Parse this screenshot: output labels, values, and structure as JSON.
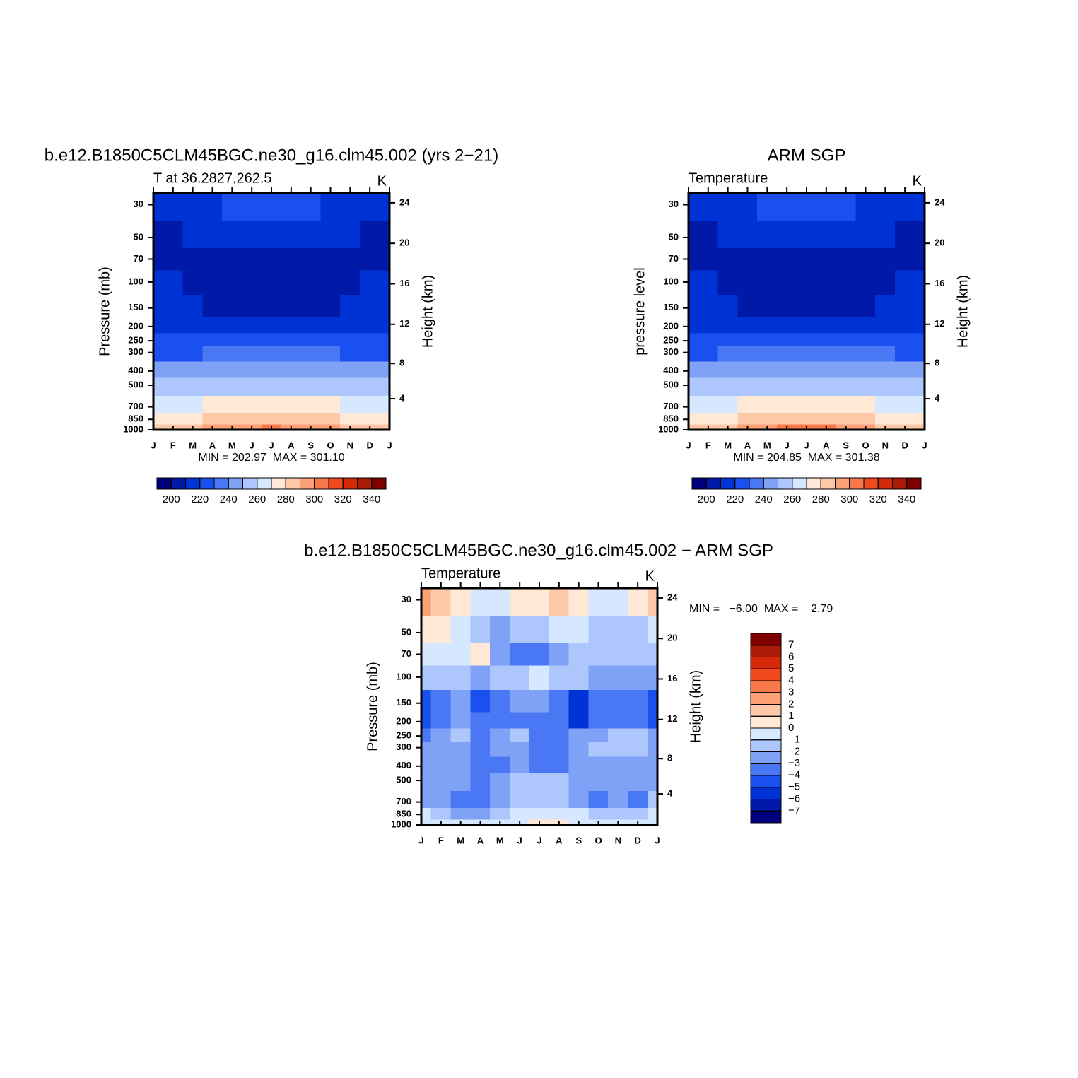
{
  "chart_data": [
    {
      "type": "contour",
      "title": "b.e12.B1850C5CLM45BGC.ne30_g16.clm45.002 (yrs 2−21)",
      "subtitle": "T at 36.2827,262.5",
      "units": "K",
      "ylabel": "Pressure (mb)",
      "y2label": "Height (km)",
      "stats": "MIN = 202.97  MAX = 301.10",
      "categories": [
        "J",
        "F",
        "M",
        "A",
        "M",
        "J",
        "J",
        "A",
        "S",
        "O",
        "N",
        "D",
        "J"
      ],
      "log_y": true,
      "ylim": [
        1000,
        25
      ],
      "yticks": [
        30,
        50,
        70,
        100,
        150,
        200,
        250,
        300,
        400,
        500,
        700,
        850,
        1000
      ],
      "y2ticks": [
        4,
        8,
        12,
        16,
        20,
        24
      ],
      "y": [
        30,
        50,
        70,
        100,
        150,
        200,
        250,
        300,
        400,
        500,
        700,
        850,
        1000
      ],
      "z": [
        [
          214,
          214.5,
          216,
          218,
          220,
          221.5,
          222,
          221.5,
          220,
          218,
          216,
          214.5,
          214
        ],
        [
          209,
          209.4,
          210.5,
          212,
          213.5,
          214.6,
          215,
          214.6,
          213.5,
          212,
          210.5,
          209.4,
          209
        ],
        [
          206,
          206.2,
          206.8,
          207.5,
          208.3,
          208.8,
          209,
          208.8,
          208.3,
          207.5,
          206.8,
          206.2,
          206
        ],
        [
          211,
          210.6,
          209.5,
          208,
          206.5,
          205.4,
          205,
          205.4,
          206.5,
          208,
          209.5,
          210.6,
          211
        ],
        [
          212.97,
          212.3,
          210.5,
          208,
          205.5,
          203.6,
          202.97,
          203.6,
          205.5,
          208,
          210.5,
          212.3,
          212.97
        ],
        [
          217,
          216.8,
          216.3,
          215.5,
          214.8,
          214.2,
          214,
          214.2,
          214.8,
          215.5,
          216.3,
          216.8,
          217
        ],
        [
          222,
          222.2,
          222.8,
          223.5,
          224.3,
          224.8,
          225,
          224.8,
          224.3,
          223.5,
          222.8,
          222.2,
          222
        ],
        [
          228,
          228.4,
          229.5,
          231,
          232.5,
          233.6,
          234,
          233.6,
          232.5,
          231,
          229.5,
          228.4,
          228
        ],
        [
          241,
          241.5,
          243,
          245,
          247,
          248.5,
          249,
          248.5,
          247,
          245,
          243,
          241.5,
          241
        ],
        [
          251,
          251.6,
          253.1,
          255.3,
          257.4,
          258.9,
          259.5,
          258.9,
          257.4,
          255.3,
          253.1,
          251.6,
          251
        ],
        [
          265,
          265.8,
          268,
          271,
          274,
          276.2,
          277,
          276.2,
          274,
          271,
          268,
          265.8,
          265
        ],
        [
          275,
          275.9,
          278.5,
          282,
          285.5,
          288.1,
          289,
          288.1,
          285.5,
          282,
          278.5,
          275.9,
          275
        ],
        [
          280,
          281.4,
          285.3,
          290.6,
          295.8,
          299.7,
          301.1,
          299.7,
          295.8,
          290.6,
          285.3,
          281.4,
          280
        ]
      ],
      "levels": [
        200,
        210,
        220,
        230,
        240,
        250,
        260,
        270,
        280,
        290,
        300,
        310,
        320,
        330,
        340
      ],
      "colors": [
        "#00007f",
        "#0019a8",
        "#0033d6",
        "#1a4ff0",
        "#4a78f5",
        "#80a2f6",
        "#adc6fc",
        "#d6e8ff",
        "#ffe8d6",
        "#fcc8a8",
        "#fca078",
        "#f8784a",
        "#f04a1e",
        "#d42a0a",
        "#aa1a05",
        "#800000"
      ],
      "colorbar": "horizontal",
      "colorbar_ticks": [
        200,
        220,
        240,
        260,
        280,
        300,
        320,
        340
      ]
    },
    {
      "type": "contour",
      "title": "ARM SGP",
      "subtitle": "Temperature",
      "units": "K",
      "ylabel": "pressure level",
      "y2label": "Height (km)",
      "stats": "MIN = 204.85  MAX = 301.38",
      "categories": [
        "J",
        "F",
        "M",
        "A",
        "M",
        "J",
        "J",
        "A",
        "S",
        "O",
        "N",
        "D",
        "J"
      ],
      "log_y": true,
      "ylim": [
        1000,
        25
      ],
      "yticks": [
        30,
        50,
        70,
        100,
        150,
        200,
        250,
        300,
        400,
        500,
        700,
        850,
        1000
      ],
      "y2ticks": [
        4,
        8,
        12,
        16,
        20,
        24
      ],
      "y": [
        30,
        50,
        70,
        100,
        150,
        200,
        250,
        300,
        400,
        500,
        700,
        850,
        1000
      ],
      "z": [
        [
          215,
          215.5,
          216.8,
          218.5,
          220.3,
          221.5,
          222,
          221.5,
          220.3,
          218.5,
          216.8,
          215.5,
          215
        ],
        [
          209.5,
          209.8,
          210.8,
          212,
          213.3,
          214.2,
          214.5,
          214.2,
          213.3,
          212,
          210.8,
          209.8,
          209.5
        ],
        [
          208,
          208.1,
          208.4,
          208.8,
          209.1,
          209.4,
          209.5,
          209.4,
          209.1,
          208.8,
          208.4,
          208.1,
          208
        ],
        [
          211,
          210.7,
          209.8,
          208.5,
          207.3,
          206.3,
          206,
          206.3,
          207.3,
          208.5,
          209.8,
          210.7,
          211
        ],
        [
          214,
          213.4,
          211.7,
          209.4,
          207.1,
          205.5,
          204.85,
          205.5,
          207.1,
          209.4,
          211.7,
          213.4,
          214
        ],
        [
          217,
          216.9,
          216.5,
          216,
          215.5,
          215.1,
          215,
          215.1,
          215.5,
          216,
          216.5,
          216.9,
          217
        ],
        [
          223,
          223.1,
          223.5,
          224,
          224.5,
          224.9,
          225,
          224.9,
          224.5,
          224,
          223.5,
          223.1,
          223
        ],
        [
          229,
          229.3,
          230.3,
          231.5,
          232.8,
          233.7,
          234,
          233.7,
          232.8,
          231.5,
          230.3,
          229.3,
          229
        ],
        [
          241.5,
          242,
          243.5,
          245.5,
          247.5,
          249,
          249.5,
          249,
          247.5,
          245.5,
          243.5,
          242,
          241.5
        ],
        [
          251.5,
          252,
          253.5,
          255.5,
          257.5,
          259,
          259.5,
          259,
          257.5,
          255.5,
          253.5,
          252,
          251.5
        ],
        [
          266,
          266.8,
          269,
          272,
          275,
          277.2,
          278,
          277.2,
          275,
          272,
          269,
          266.8,
          266
        ],
        [
          276,
          276.9,
          279.4,
          282.8,
          286.1,
          288.6,
          289.5,
          288.6,
          286.1,
          282.8,
          279.4,
          276.9,
          276
        ],
        [
          281,
          282.4,
          286.1,
          291.2,
          296.3,
          300,
          301.38,
          300,
          296.3,
          291.2,
          286.1,
          282.4,
          281
        ]
      ],
      "levels": [
        200,
        210,
        220,
        230,
        240,
        250,
        260,
        270,
        280,
        290,
        300,
        310,
        320,
        330,
        340
      ],
      "colors": [
        "#00007f",
        "#0019a8",
        "#0033d6",
        "#1a4ff0",
        "#4a78f5",
        "#80a2f6",
        "#adc6fc",
        "#d6e8ff",
        "#ffe8d6",
        "#fcc8a8",
        "#fca078",
        "#f8784a",
        "#f04a1e",
        "#d42a0a",
        "#aa1a05",
        "#800000"
      ],
      "colorbar": "horizontal",
      "colorbar_ticks": [
        200,
        220,
        240,
        260,
        280,
        300,
        320,
        340
      ]
    },
    {
      "type": "contour",
      "title": "b.e12.B1850C5CLM45BGC.ne30_g16.clm45.002 − ARM SGP",
      "subtitle": "Temperature",
      "units": "K",
      "ylabel": "Pressure (mb)",
      "y2label": "Height (km)",
      "stats": "MIN =   −6.00  MAX =    2.79",
      "categories": [
        "J",
        "F",
        "M",
        "A",
        "M",
        "J",
        "J",
        "A",
        "S",
        "O",
        "N",
        "D",
        "J"
      ],
      "log_y": true,
      "ylim": [
        1000,
        25
      ],
      "yticks": [
        30,
        50,
        70,
        100,
        150,
        200,
        250,
        300,
        400,
        500,
        700,
        850,
        1000
      ],
      "y2ticks": [
        4,
        8,
        12,
        16,
        20,
        24
      ],
      "y": [
        30,
        50,
        70,
        100,
        150,
        200,
        250,
        300,
        400,
        500,
        700,
        850,
        1000
      ],
      "z": [
        [
          2.79,
          1.2,
          0.3,
          -0.5,
          -0.3,
          0.2,
          0.8,
          1.5,
          0.3,
          -0.5,
          -0.5,
          0.5,
          1.5
        ],
        [
          0.3,
          0.2,
          -0.5,
          -1.5,
          -2.2,
          -1.8,
          -1.2,
          -1.0,
          -0.8,
          -1.3,
          -1.5,
          -1.2,
          -0.5
        ],
        [
          -0.5,
          -0.6,
          -0.8,
          0.2,
          -2.5,
          -3.2,
          -3.5,
          -2.5,
          -1.5,
          -1.5,
          -1.5,
          -1.6,
          -1.5
        ],
        [
          -1.5,
          -1.5,
          -1.8,
          -2.2,
          -1.8,
          -1.5,
          -0.5,
          -1.5,
          -1.8,
          -2.2,
          -2.5,
          -2.6,
          -2.5
        ],
        [
          -4.5,
          -3.5,
          -2.8,
          -4.2,
          -4.0,
          -3.0,
          -2.8,
          -3.2,
          -6.0,
          -3.5,
          -3.5,
          -3.2,
          -4.5
        ],
        [
          -5.0,
          -3.8,
          -2.5,
          -3.8,
          -3.5,
          -3.5,
          -3.2,
          -3.5,
          -5.2,
          -4.0,
          -3.5,
          -3.5,
          -5.0
        ],
        [
          -3.2,
          -2.5,
          -1.8,
          -3.5,
          -2.5,
          -1.8,
          -3.2,
          -3.5,
          -3.0,
          -2.5,
          -1.5,
          -1.8,
          -3.0
        ],
        [
          -2.8,
          -2.5,
          -2.2,
          -3.5,
          -3.0,
          -2.2,
          -3.3,
          -3.5,
          -2.5,
          -1.5,
          -1.5,
          -1.5,
          -2.5
        ],
        [
          -2.5,
          -2.8,
          -2.8,
          -3.5,
          -3.2,
          -3.0,
          -3.2,
          -3.5,
          -2.5,
          -2.2,
          -2.3,
          -2.2,
          -2.5
        ],
        [
          -2.5,
          -2.5,
          -2.6,
          -3.2,
          -2.5,
          -2.0,
          -1.8,
          -1.8,
          -2.2,
          -2.5,
          -2.5,
          -2.8,
          -2.5
        ],
        [
          -2.2,
          -2.5,
          -3.5,
          -3.8,
          -2.5,
          -1.5,
          -1.8,
          -1.5,
          -2.5,
          -3.2,
          -2.5,
          -3.5,
          -2.0
        ],
        [
          -1.0,
          -1.8,
          -2.8,
          -2.5,
          -1.5,
          -0.8,
          -0.5,
          -0.5,
          -1.0,
          -1.2,
          -1.5,
          -1.8,
          -1.0
        ],
        [
          -0.2,
          -0.5,
          -0.8,
          -0.6,
          -0.5,
          -0.2,
          0.3,
          0.2,
          -0.1,
          -0.3,
          -0.5,
          -0.6,
          -0.2
        ]
      ],
      "levels": [
        -7,
        -6,
        -5,
        -4,
        -3,
        -2,
        -1,
        0,
        1,
        2,
        3,
        4,
        5,
        6,
        7
      ],
      "colors": [
        "#00007f",
        "#0019a8",
        "#0033d6",
        "#1a4ff0",
        "#4a78f5",
        "#80a2f6",
        "#adc6fc",
        "#d6e8ff",
        "#ffe8d6",
        "#fcc8a8",
        "#fca078",
        "#f8784a",
        "#f04a1e",
        "#d42a0a",
        "#aa1a05",
        "#800000"
      ],
      "colorbar": "vertical",
      "colorbar_ticks": [
        {
          "value": -7,
          "label": "−7"
        },
        {
          "value": -6,
          "label": "−6"
        },
        {
          "value": -5,
          "label": "−5"
        },
        {
          "value": -4,
          "label": "−4"
        },
        {
          "value": -3,
          "label": "−3"
        },
        {
          "value": -2,
          "label": "−2"
        },
        {
          "value": -1,
          "label": "−1"
        },
        0,
        1,
        2,
        3,
        4,
        5,
        6,
        7
      ]
    }
  ]
}
